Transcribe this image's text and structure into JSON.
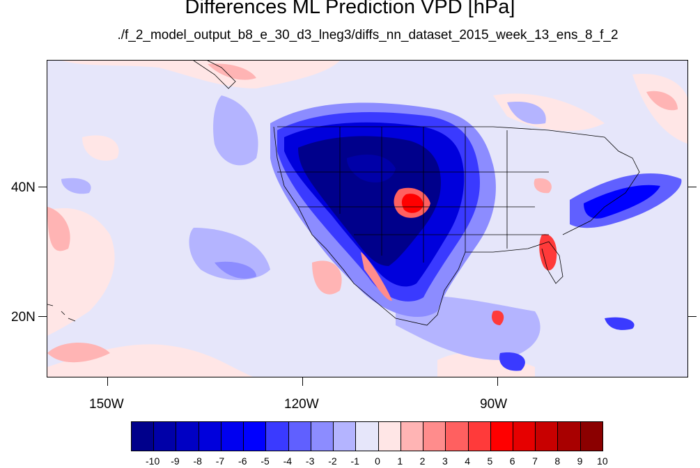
{
  "title": "Differences ML Prediction VPD [hPa]",
  "subtitle": "./f_2_model_output_b8_e_30_d3_lneg3/diffs_nn_dataset_2015_week_13_ens_8_f_2",
  "map": {
    "lon_range": [
      -161,
      -62
    ],
    "lat_range": [
      10,
      59
    ],
    "x_ticks": [
      {
        "label": "150W",
        "lon": -150
      },
      {
        "label": "120W",
        "lon": -120
      },
      {
        "label": "90W",
        "lon": -90
      }
    ],
    "y_ticks": [
      {
        "label": "40N",
        "lat": 40
      },
      {
        "label": "20N",
        "lat": 20
      }
    ],
    "background_color": "#e6e6fa"
  },
  "colorbar": {
    "labels": [
      "-10",
      "-9",
      "-8",
      "-7",
      "-6",
      "-5",
      "-4",
      "-3",
      "-2",
      "-1",
      "0",
      "1",
      "2",
      "3",
      "4",
      "5",
      "6",
      "7",
      "8",
      "9",
      "10"
    ],
    "colors": [
      "#00008b",
      "#0000a8",
      "#0000c4",
      "#0000dc",
      "#0000f0",
      "#0000ff",
      "#3a3aff",
      "#6060ff",
      "#8c8cff",
      "#b4b4ff",
      "#e6e6fa",
      "#ffe6e6",
      "#ffb4b4",
      "#ff8c8c",
      "#ff6060",
      "#ff3a3a",
      "#ff0000",
      "#e60000",
      "#c80000",
      "#a80000",
      "#8b0000"
    ]
  }
}
